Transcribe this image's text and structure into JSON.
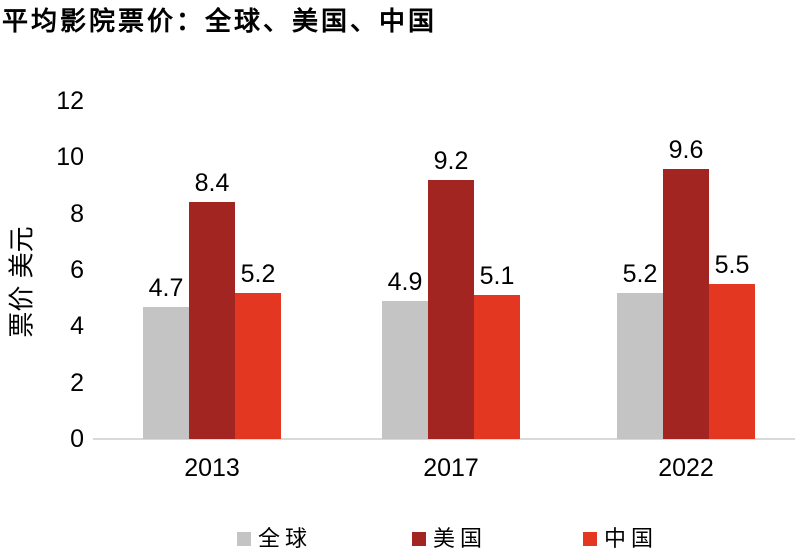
{
  "title": "平均影院票价：全球、美国、中国",
  "y_axis_label": "票价 美元",
  "colors": {
    "background": "#FFFFFF",
    "text": "#000000",
    "axis_line": "#D9D9D9",
    "series_global": "#C4C4C4",
    "series_us": "#A32522",
    "series_china": "#E43722"
  },
  "chart_data": {
    "type": "bar",
    "title": "平均影院票价：全球、美国、中国",
    "ylabel": "票价 美元",
    "xlabel": "",
    "categories": [
      "2013",
      "2017",
      "2022"
    ],
    "series": [
      {
        "key": "global",
        "name": "全球",
        "color": "#C4C4C4",
        "values": [
          4.7,
          4.9,
          5.2
        ]
      },
      {
        "key": "us",
        "name": "美国",
        "color": "#A32522",
        "values": [
          8.4,
          9.2,
          9.6
        ]
      },
      {
        "key": "china",
        "name": "中国",
        "color": "#E43722",
        "values": [
          5.2,
          5.1,
          5.5
        ]
      }
    ],
    "value_labels_shown": true,
    "ylim": [
      0,
      12
    ],
    "yticks": [
      0,
      2,
      4,
      6,
      8,
      10,
      12
    ],
    "grid": false,
    "legend_position": "bottom"
  }
}
